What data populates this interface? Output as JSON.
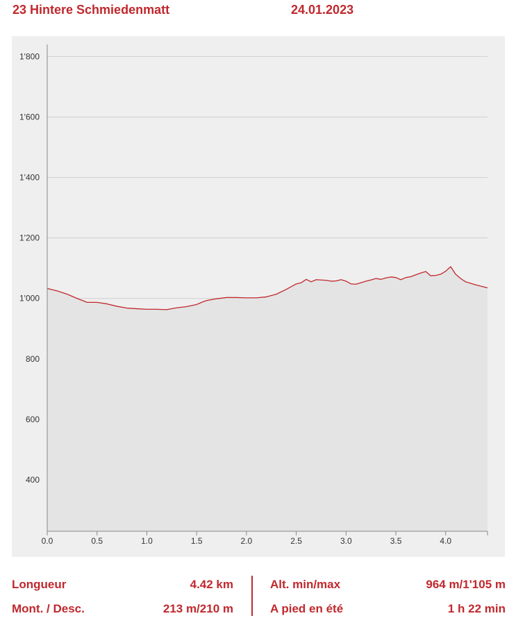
{
  "header": {
    "title": "23 Hintere Schmiedenmatt",
    "date": "24.01.2023"
  },
  "chart_data": {
    "type": "area",
    "title": "",
    "xlabel": "",
    "ylabel": "",
    "xlim": [
      0,
      4.42
    ],
    "ylim": [
      230,
      1840
    ],
    "x_ticks": [
      0.0,
      0.5,
      1.0,
      1.5,
      2.0,
      2.5,
      3.0,
      3.5,
      4.0
    ],
    "x_tick_labels": [
      "0.0",
      "0.5",
      "1.0",
      "1.5",
      "2.0",
      "2.5",
      "3.0",
      "3.5",
      "4.0"
    ],
    "y_ticks": [
      400,
      600,
      800,
      1000,
      1200,
      1400,
      1600,
      1800
    ],
    "y_tick_labels": [
      "400",
      "600",
      "800",
      "1'000",
      "1'200",
      "1'400",
      "1'600",
      "1'800"
    ],
    "grid": true,
    "colors": {
      "line": "#c0282d",
      "fill": "#e4e4e4",
      "background": "#efefef",
      "grid": "#cfcfcf",
      "axis": "#888888"
    },
    "series": [
      {
        "x": [
          0.0,
          0.1,
          0.2,
          0.3,
          0.4,
          0.5,
          0.6,
          0.7,
          0.8,
          0.9,
          1.0,
          1.1,
          1.2,
          1.25,
          1.3,
          1.4,
          1.5,
          1.55,
          1.6,
          1.7,
          1.8,
          1.9,
          2.0,
          2.1,
          2.2,
          2.3,
          2.4,
          2.5,
          2.55,
          2.6,
          2.65,
          2.7,
          2.8,
          2.85,
          2.9,
          2.95,
          3.0,
          3.05,
          3.1,
          3.15,
          3.2,
          3.25,
          3.3,
          3.35,
          3.4,
          3.45,
          3.5,
          3.55,
          3.6,
          3.65,
          3.7,
          3.75,
          3.8,
          3.85,
          3.9,
          3.95,
          4.0,
          4.05,
          4.1,
          4.15,
          4.2,
          4.3,
          4.42
        ],
        "values": [
          1033,
          1025,
          1014,
          1000,
          987,
          987,
          982,
          974,
          968,
          966,
          964,
          964,
          963,
          966,
          969,
          973,
          980,
          987,
          993,
          999,
          1003,
          1003,
          1002,
          1002,
          1005,
          1014,
          1030,
          1048,
          1052,
          1063,
          1055,
          1062,
          1060,
          1057,
          1058,
          1062,
          1057,
          1048,
          1047,
          1052,
          1057,
          1061,
          1066,
          1063,
          1068,
          1071,
          1069,
          1062,
          1069,
          1072,
          1078,
          1084,
          1089,
          1075,
          1076,
          1080,
          1090,
          1105,
          1080,
          1066,
          1055,
          1045,
          1035
        ]
      }
    ]
  },
  "stats": {
    "length_label": "Longueur",
    "length_value": "4.42 km",
    "alt_label": "Alt. min/max",
    "alt_value": "964 m/1'105 m",
    "updown_label": "Mont. / Desc.",
    "updown_value": "213 m/210 m",
    "walk_label": "A pied en été",
    "walk_value": "1 h 22 min"
  }
}
